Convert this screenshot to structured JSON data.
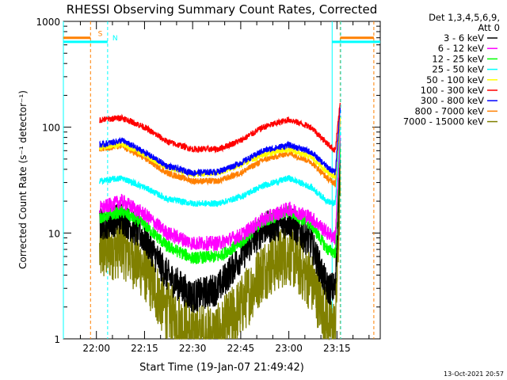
{
  "chart_data": {
    "type": "line",
    "title": "RHESSI Observing Summary Count Rates, Corrected",
    "xlabel": "Start Time (19-Jan-07 21:49:42)",
    "ylabel": "Corrected Count Rate (s⁻¹ detector⁻¹)",
    "xscale": "time",
    "yscale": "log",
    "xlim": [
      "21:49:42",
      "23:28:30"
    ],
    "ylim": [
      1,
      1000
    ],
    "x_ticks": [
      "22:00",
      "22:15",
      "22:30",
      "22:45",
      "23:00",
      "23:15"
    ],
    "y_ticks": [
      "1",
      "10",
      "100",
      "1000"
    ],
    "legend_header": [
      "Det 1,3,4,5,6,9,",
      "Att 0"
    ],
    "legend_position": "right",
    "timestamp": "13-Oct-2021 20:57",
    "series": [
      {
        "name": "3 - 6 keV",
        "color": "#000000",
        "x": [
          "22:01",
          "22:08",
          "22:15",
          "22:22",
          "22:30",
          "22:38",
          "22:45",
          "22:52",
          "23:00",
          "23:07",
          "23:12",
          "23:14:30",
          "23:16"
        ],
        "y": [
          12,
          14,
          9,
          4,
          2.5,
          3,
          6,
          11,
          13,
          8,
          3,
          3,
          60
        ]
      },
      {
        "name": "6 - 12 keV",
        "color": "#ff00ff",
        "x": [
          "22:01",
          "22:08",
          "22:15",
          "22:22",
          "22:30",
          "22:38",
          "22:45",
          "22:52",
          "23:00",
          "23:07",
          "23:12",
          "23:14:30",
          "23:16"
        ],
        "y": [
          17,
          20,
          15,
          10,
          8,
          8,
          9.5,
          13.5,
          17,
          14,
          10,
          9,
          80
        ]
      },
      {
        "name": "12 - 25 keV",
        "color": "#00ff00",
        "x": [
          "22:01",
          "22:08",
          "22:15",
          "22:22",
          "22:30",
          "22:38",
          "22:45",
          "22:52",
          "23:00",
          "23:07",
          "23:12",
          "23:14:30",
          "23:16"
        ],
        "y": [
          14,
          16,
          12,
          7.5,
          5.8,
          6,
          8,
          13,
          16,
          12,
          7,
          6.5,
          70
        ]
      },
      {
        "name": "25 - 50 keV",
        "color": "#00ffff",
        "x": [
          "22:01",
          "22:08",
          "22:15",
          "22:22",
          "22:30",
          "22:38",
          "22:45",
          "22:52",
          "23:00",
          "23:07",
          "23:12",
          "23:14:30",
          "23:16"
        ],
        "y": [
          31,
          33,
          27,
          21,
          19,
          19,
          22,
          28,
          33,
          27,
          20,
          19,
          100
        ]
      },
      {
        "name": "50 - 100 keV",
        "color": "#ffff00",
        "x": [
          "22:01",
          "22:08",
          "22:15",
          "22:22",
          "22:30",
          "22:38",
          "22:45",
          "22:52",
          "23:00",
          "23:07",
          "23:12",
          "23:14:30",
          "23:16"
        ],
        "y": [
          64,
          70,
          55,
          42,
          36,
          37,
          44,
          55,
          62,
          52,
          38,
          34,
          130
        ]
      },
      {
        "name": "100 - 300 keV",
        "color": "#ff0000",
        "x": [
          "22:01",
          "22:08",
          "22:15",
          "22:22",
          "22:30",
          "22:38",
          "22:45",
          "22:52",
          "23:00",
          "23:07",
          "23:12",
          "23:14:30",
          "23:16"
        ],
        "y": [
          117,
          123,
          100,
          73,
          62,
          62,
          75,
          100,
          118,
          100,
          70,
          60,
          170
        ]
      },
      {
        "name": "300 - 800 keV",
        "color": "#0000ff",
        "x": [
          "22:01",
          "22:08",
          "22:15",
          "22:22",
          "22:30",
          "22:38",
          "22:45",
          "22:52",
          "23:00",
          "23:07",
          "23:12",
          "23:14:30",
          "23:16"
        ],
        "y": [
          68,
          75,
          58,
          43,
          37,
          38,
          46,
          60,
          68,
          58,
          42,
          37,
          150
        ]
      },
      {
        "name": "800 - 7000 keV",
        "color": "#ff8000",
        "x": [
          "22:01",
          "22:08",
          "22:15",
          "22:22",
          "22:30",
          "22:38",
          "22:45",
          "22:52",
          "23:00",
          "23:07",
          "23:12",
          "23:14:30",
          "23:16"
        ],
        "y": [
          63,
          66,
          51,
          37,
          31,
          31,
          37,
          49,
          57,
          47,
          33,
          29,
          120
        ]
      },
      {
        "name": "7000 - 15000 keV",
        "color": "#808000",
        "x": [
          "22:01",
          "22:08",
          "22:15",
          "22:22",
          "22:30",
          "22:38",
          "22:45",
          "22:52",
          "23:00",
          "23:07",
          "23:12",
          "23:14:30",
          "23:16"
        ],
        "y": [
          6.5,
          7.5,
          4.5,
          1.8,
          1.1,
          1.1,
          2,
          4.5,
          6.5,
          3.5,
          1.5,
          1.2,
          30
        ]
      }
    ],
    "annotations": [
      {
        "label": "S",
        "color": "#ff8000",
        "x": "21:59:00",
        "level": 700
      },
      {
        "label": "N",
        "color": "#00ffff",
        "x": "22:03:30",
        "level": 640
      }
    ],
    "flag_lines": [
      {
        "color": "#00ffff",
        "x": "21:49:42",
        "level": 640
      },
      {
        "color": "#ff8000",
        "x": "21:58:10",
        "level": 700
      },
      {
        "color": "#00ffff",
        "x": "22:03:30",
        "level": 640
      },
      {
        "color": "#00ffff",
        "x": "23:13:30",
        "level": 640
      },
      {
        "color": "#ff8000",
        "x": "23:16:00",
        "level": 700
      },
      {
        "color": "#00ffff",
        "x": "23:16:10",
        "level": 640
      },
      {
        "color": "#ff8000",
        "x": "23:26:30",
        "level": 700
      }
    ]
  }
}
